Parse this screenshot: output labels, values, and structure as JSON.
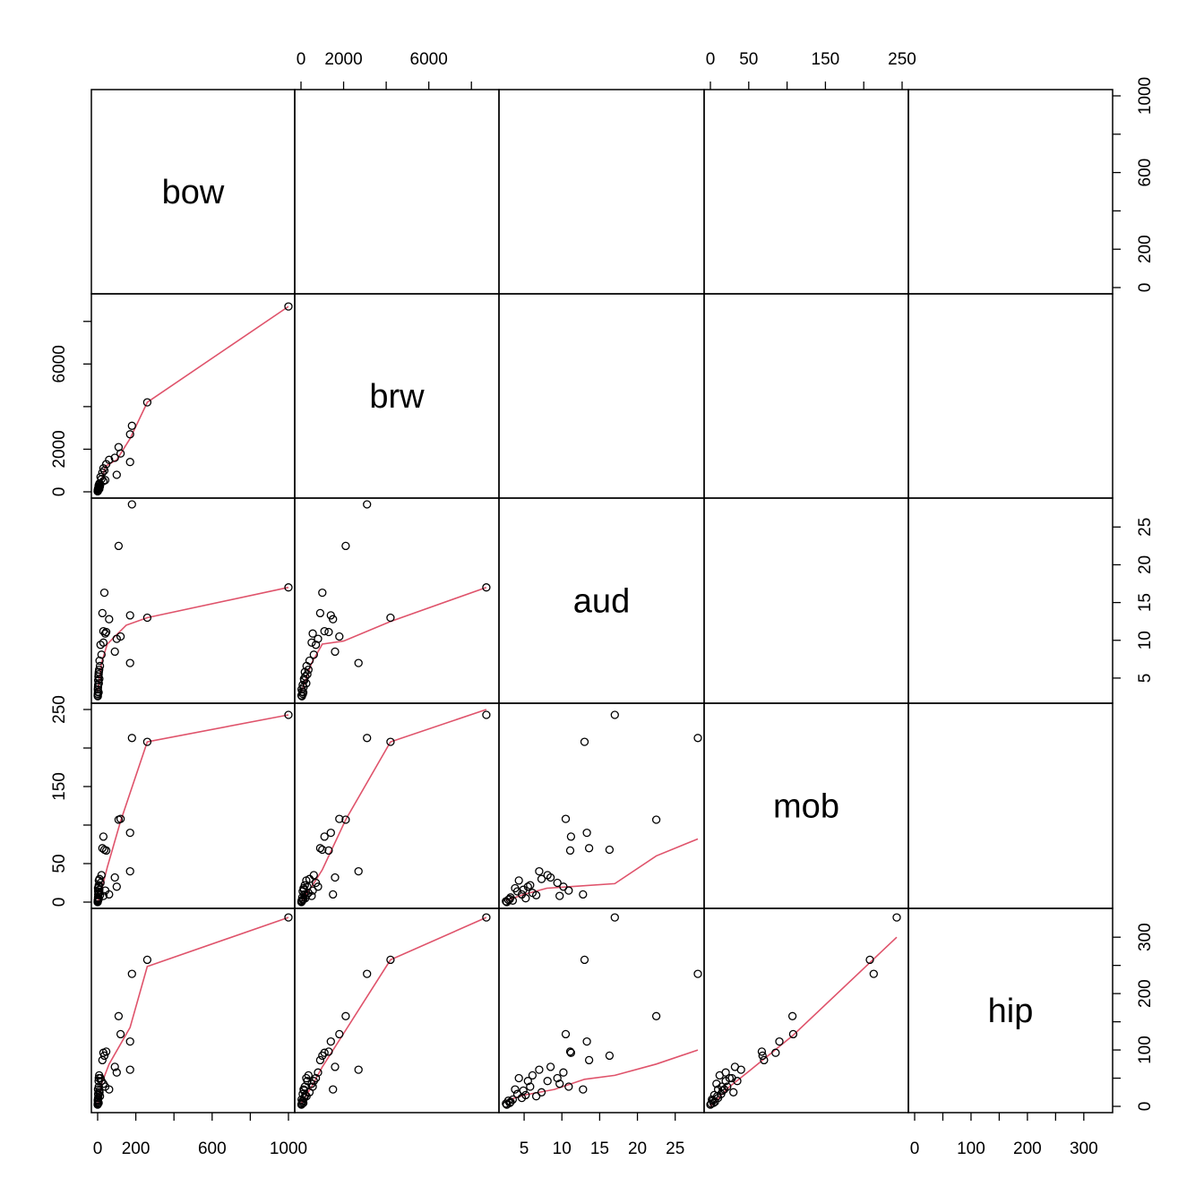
{
  "chart_data": {
    "type": "scatter",
    "variables": [
      "bow",
      "brw",
      "aud",
      "mob",
      "hip"
    ],
    "axes": [
      {
        "name": "bow",
        "range": [
          0,
          1000
        ],
        "ticks": [
          0,
          200,
          400,
          600,
          800,
          1000
        ],
        "tick_labels": [
          "0",
          "200",
          "",
          "600",
          "",
          "1000"
        ]
      },
      {
        "name": "brw",
        "range": [
          0,
          9000
        ],
        "ticks": [
          0,
          2000,
          4000,
          6000,
          8000
        ],
        "tick_labels": [
          "0",
          "2000",
          "",
          "6000",
          ""
        ]
      },
      {
        "name": "aud",
        "range": [
          2.5,
          28
        ],
        "ticks": [
          5,
          10,
          15,
          20,
          25
        ],
        "tick_labels": [
          "5",
          "10",
          "15",
          "20",
          "25"
        ]
      },
      {
        "name": "mob",
        "range": [
          0,
          250
        ],
        "ticks": [
          0,
          50,
          100,
          150,
          200,
          250
        ],
        "tick_labels": [
          "0",
          "50",
          "",
          "150",
          "",
          "250"
        ]
      },
      {
        "name": "hip",
        "range": [
          0,
          340
        ],
        "ticks": [
          0,
          50,
          100,
          150,
          200,
          250,
          300
        ],
        "tick_labels": [
          "0",
          "",
          "100",
          "",
          "200",
          "",
          "300"
        ]
      }
    ],
    "upper_axis_labels": {
      "bow": [
        "0",
        "200",
        "600",
        "1000"
      ],
      "brw": [
        "0",
        "2000",
        "6000"
      ],
      "aud": [
        "5",
        "10",
        "15",
        "20",
        "25"
      ],
      "mob": [
        "0",
        "50",
        "150",
        "250"
      ],
      "hip": [
        "0",
        "100",
        "200",
        "300"
      ]
    },
    "observations": [
      {
        "bow": 1000,
        "brw": 8700,
        "aud": 17,
        "mob": 243,
        "hip": 335
      },
      {
        "bow": 260,
        "brw": 4200,
        "aud": 13,
        "mob": 208,
        "hip": 260
      },
      {
        "bow": 180,
        "brw": 3100,
        "aud": 28,
        "mob": 213,
        "hip": 235
      },
      {
        "bow": 170,
        "brw": 2700,
        "aud": 7,
        "mob": 40,
        "hip": 65
      },
      {
        "bow": 110,
        "brw": 2100,
        "aud": 22.5,
        "mob": 107,
        "hip": 160
      },
      {
        "bow": 120,
        "brw": 1800,
        "aud": 10.5,
        "mob": 108,
        "hip": 128
      },
      {
        "bow": 170,
        "brw": 1400,
        "aud": 13.3,
        "mob": 90,
        "hip": 115
      },
      {
        "bow": 90,
        "brw": 1600,
        "aud": 8.5,
        "mob": 32,
        "hip": 70
      },
      {
        "bow": 60,
        "brw": 1500,
        "aud": 12.8,
        "mob": 10,
        "hip": 30
      },
      {
        "bow": 45,
        "brw": 1300,
        "aud": 11.1,
        "mob": 67,
        "hip": 97
      },
      {
        "bow": 30,
        "brw": 1100,
        "aud": 11.2,
        "mob": 85,
        "hip": 95
      },
      {
        "bow": 35,
        "brw": 1000,
        "aud": 16.3,
        "mob": 68,
        "hip": 90
      },
      {
        "bow": 25,
        "brw": 900,
        "aud": 13.6,
        "mob": 70,
        "hip": 82
      },
      {
        "bow": 100,
        "brw": 800,
        "aud": 10.2,
        "mob": 20,
        "hip": 60
      },
      {
        "bow": 15,
        "brw": 700,
        "aud": 9.4,
        "mob": 25,
        "hip": 50
      },
      {
        "bow": 20,
        "brw": 600,
        "aud": 8.1,
        "mob": 35,
        "hip": 45
      },
      {
        "bow": 40,
        "brw": 550,
        "aud": 10.9,
        "mob": 15,
        "hip": 35
      },
      {
        "bow": 30,
        "brw": 500,
        "aud": 9.7,
        "mob": 8,
        "hip": 40
      },
      {
        "bow": 10,
        "brw": 400,
        "aud": 7.3,
        "mob": 30,
        "hip": 25
      },
      {
        "bow": 8,
        "brw": 350,
        "aud": 6.1,
        "mob": 12,
        "hip": 55
      },
      {
        "bow": 5,
        "brw": 300,
        "aud": 5.5,
        "mob": 20,
        "hip": 45
      },
      {
        "bow": 6,
        "brw": 250,
        "aud": 4.3,
        "mob": 28,
        "hip": 50
      },
      {
        "bow": 4,
        "brw": 200,
        "aud": 5.2,
        "mob": 5,
        "hip": 20
      },
      {
        "bow": 3,
        "brw": 150,
        "aud": 4.7,
        "mob": 10,
        "hip": 15
      },
      {
        "bow": 2,
        "brw": 120,
        "aud": 3.8,
        "mob": 18,
        "hip": 30
      },
      {
        "bow": 1,
        "brw": 90,
        "aud": 2.9,
        "mob": 3,
        "hip": 10
      },
      {
        "bow": 2,
        "brw": 60,
        "aud": 3.2,
        "mob": 6,
        "hip": 8
      },
      {
        "bow": 1,
        "brw": 40,
        "aud": 2.6,
        "mob": 1,
        "hip": 5
      },
      {
        "bow": 0,
        "brw": 20,
        "aud": 2.7,
        "mob": 0,
        "hip": 3
      },
      {
        "bow": 1,
        "brw": 30,
        "aud": 3.5,
        "mob": 2,
        "hip": 12
      },
      {
        "bow": 3,
        "brw": 80,
        "aud": 4.1,
        "mob": 14,
        "hip": 22
      },
      {
        "bow": 6,
        "brw": 180,
        "aud": 5.8,
        "mob": 22,
        "hip": 35
      },
      {
        "bow": 12,
        "brw": 260,
        "aud": 6.6,
        "mob": 9,
        "hip": 18
      },
      {
        "bow": 9,
        "brw": 140,
        "aud": 4.9,
        "mob": 16,
        "hip": 28
      },
      {
        "bow": 5,
        "brw": 110,
        "aud": 3.1,
        "mob": 4,
        "hip": 6
      }
    ],
    "smooth_lines": {
      "brw|bow": [
        [
          0,
          0
        ],
        [
          20,
          500
        ],
        [
          40,
          1200
        ],
        [
          100,
          1500
        ],
        [
          170,
          2500
        ],
        [
          260,
          4200
        ],
        [
          1000,
          8700
        ]
      ],
      "aud|bow": [
        [
          0,
          3
        ],
        [
          20,
          7
        ],
        [
          50,
          9.5
        ],
        [
          150,
          12
        ],
        [
          260,
          13
        ],
        [
          1000,
          17
        ]
      ],
      "aud|brw": [
        [
          0,
          3
        ],
        [
          500,
          7
        ],
        [
          1000,
          9.5
        ],
        [
          2000,
          9.9
        ],
        [
          4200,
          12.5
        ],
        [
          8700,
          17
        ]
      ],
      "mob|bow": [
        [
          0,
          0
        ],
        [
          20,
          15
        ],
        [
          50,
          45
        ],
        [
          120,
          105
        ],
        [
          260,
          208
        ],
        [
          1000,
          243
        ]
      ],
      "mob|brw": [
        [
          0,
          0
        ],
        [
          500,
          20
        ],
        [
          1000,
          42
        ],
        [
          2100,
          107
        ],
        [
          4200,
          208
        ],
        [
          8700,
          250
        ]
      ],
      "mob|aud": [
        [
          2.6,
          2
        ],
        [
          5,
          10
        ],
        [
          8,
          18
        ],
        [
          11,
          20
        ],
        [
          17,
          24
        ],
        [
          22.5,
          60
        ],
        [
          28,
          82
        ]
      ],
      "hip|bow": [
        [
          0,
          5
        ],
        [
          20,
          40
        ],
        [
          60,
          75
        ],
        [
          170,
          140
        ],
        [
          260,
          248
        ],
        [
          1000,
          335
        ]
      ],
      "hip|brw": [
        [
          0,
          5
        ],
        [
          500,
          35
        ],
        [
          1000,
          70
        ],
        [
          2100,
          135
        ],
        [
          4200,
          260
        ],
        [
          8700,
          335
        ]
      ],
      "hip|aud": [
        [
          2.6,
          10
        ],
        [
          5,
          20
        ],
        [
          9,
          30
        ],
        [
          13,
          48
        ],
        [
          17,
          55
        ],
        [
          22.5,
          75
        ],
        [
          28,
          100
        ]
      ],
      "hip|mob": [
        [
          0,
          0
        ],
        [
          25,
          35
        ],
        [
          50,
          62
        ],
        [
          107,
          125
        ],
        [
          243,
          300
        ]
      ]
    },
    "line_color": "#DF536B",
    "point_color": "#000000"
  }
}
